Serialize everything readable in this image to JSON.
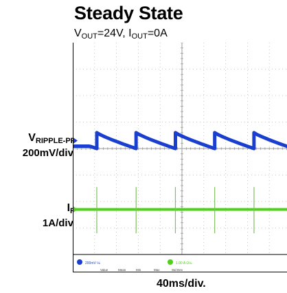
{
  "title": "Steady State",
  "subtitle": {
    "v_main": "V",
    "v_sub": "OUT",
    "v_val": "=24V, ",
    "i_main": "I",
    "i_sub": "OUT",
    "i_val": "=0A"
  },
  "channels": [
    {
      "name_main": "V",
      "name_sub": "RIPPLE-PP",
      "scale": "200mV/div.",
      "color": "#1a3fcf",
      "readout": "200mV ℅",
      "marker": "1"
    },
    {
      "name_main": "I",
      "name_sub": "R",
      "scale": "1A/div.",
      "color": "#4fd11a",
      "readout": "1.00 A Ω℅",
      "marker": "4"
    }
  ],
  "timebase": "40ms/div.",
  "measure_headers": [
    "Value",
    "Mean",
    "Min",
    "Max",
    "Std Dev"
  ],
  "colors": {
    "grid": "#b8b8b8",
    "frame": "#000000",
    "background": "#ffffff"
  },
  "chart_data": {
    "type": "line",
    "title": "Steady State",
    "subtitle": "VOUT=24V, IOUT=0A",
    "xlabel": "40ms/div.",
    "x_divisions": 10,
    "y_divisions": 8,
    "grid": true,
    "series": [
      {
        "name": "VRIPPLE-PP",
        "scale": "200mV/div.",
        "shape": "sawtooth",
        "period_div": 1.8,
        "peak_to_peak_div": 0.6,
        "first_jump_div": 1.1,
        "baseline_div": 0.3
      },
      {
        "name": "IR",
        "scale": "1A/div.",
        "shape": "pulse",
        "period_div": 1.8,
        "pulse_height_div": 1.0,
        "first_pulse_div": 1.1,
        "baseline_div": -2.3
      }
    ]
  }
}
